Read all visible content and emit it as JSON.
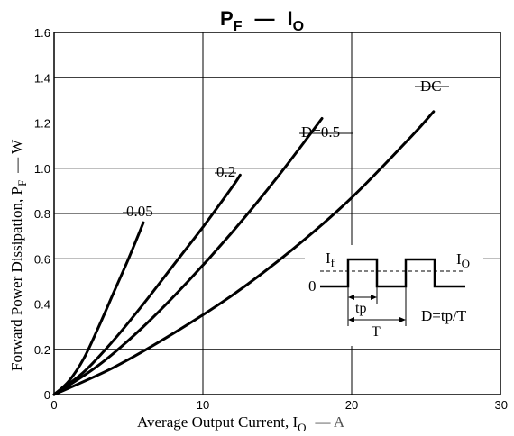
{
  "chart_data": {
    "type": "line",
    "title_main": "P",
    "title_sub": "F",
    "title_dash": "—",
    "title_main2": "I",
    "title_sub2": "O",
    "xlabel_main": "Average Output Current, I",
    "xlabel_sub": "O",
    "xlabel_unit": "— A",
    "ylabel_main": "Forward Power Dissipation, P",
    "ylabel_sub": "F",
    "ylabel_unit": "— W",
    "xlim": [
      0,
      30
    ],
    "ylim": [
      0,
      1.6
    ],
    "x_ticks": [
      "0",
      "10",
      "20",
      "30"
    ],
    "y_ticks": [
      "0",
      "0.2",
      "0.4",
      "0.6",
      "0.8",
      "1.0",
      "1.2",
      "1.4",
      "1.6"
    ],
    "grid": true,
    "series": [
      {
        "name": "0.05",
        "x": [
          0,
          1,
          2,
          3,
          4,
          5,
          6
        ],
        "y": [
          0,
          0.06,
          0.16,
          0.3,
          0.45,
          0.6,
          0.76
        ]
      },
      {
        "name": "0.2",
        "x": [
          0,
          2,
          4,
          6,
          8,
          10,
          12,
          12.5
        ],
        "y": [
          0,
          0.1,
          0.24,
          0.4,
          0.57,
          0.74,
          0.92,
          0.97
        ]
      },
      {
        "name": "D=0.5",
        "x": [
          0,
          3,
          6,
          9,
          12,
          15,
          18
        ],
        "y": [
          0,
          0.13,
          0.3,
          0.5,
          0.72,
          0.96,
          1.22
        ]
      },
      {
        "name": "DC",
        "x": [
          0,
          4,
          8,
          12,
          16,
          20,
          24,
          25.5
        ],
        "y": [
          0,
          0.12,
          0.27,
          0.44,
          0.64,
          0.87,
          1.14,
          1.25
        ]
      }
    ],
    "inset": {
      "if_label": "I",
      "if_sub": "f",
      "io_label": "I",
      "io_sub": "O",
      "zero_label": "0",
      "tp_label": "tp",
      "t_label": "T",
      "formula": "D=tp/T"
    }
  }
}
